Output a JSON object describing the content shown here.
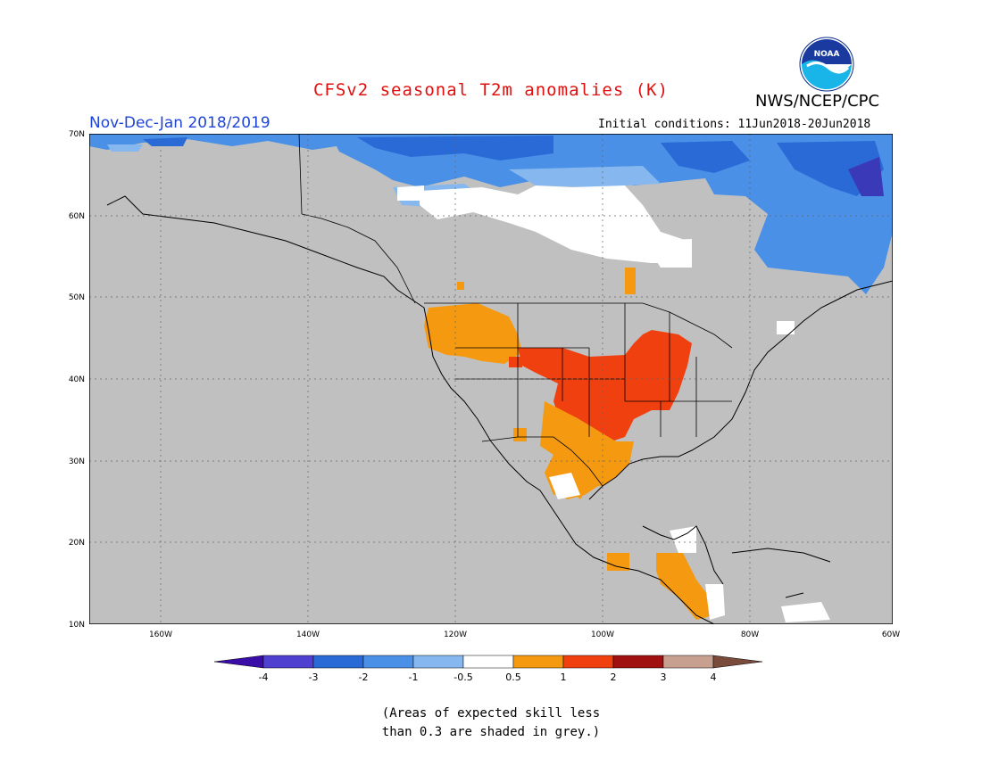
{
  "header": {
    "title": "CFSv2 seasonal T2m anomalies (K)",
    "agency": "NWS/NCEP/CPC",
    "period": "Nov-Dec-Jan 2018/2019",
    "initial_conditions": "Initial conditions: 11Jun2018-20Jun2018",
    "logo_text": "NOAA"
  },
  "map": {
    "lat_labels": [
      "70N",
      "60N",
      "50N",
      "40N",
      "30N",
      "20N",
      "10N"
    ],
    "lon_labels": [
      "160W",
      "140W",
      "120W",
      "100W",
      "80W",
      "60W"
    ],
    "ocean_land_fill": "#c0c0c0",
    "anomaly_regions": [
      {
        "region": "northern Canada / Arctic",
        "category": "-2 to -1"
      },
      {
        "region": "northern Canada interior",
        "category": "-0.5 to 0.5"
      },
      {
        "region": "Labrador / Quebec",
        "category": "-2 to -1"
      },
      {
        "region": "Pacific Northwest / Great Basin",
        "category": "0.5 to 1"
      },
      {
        "region": "Central Plains / Midwest",
        "category": "1 to 2"
      },
      {
        "region": "Southern Plains / Texas",
        "category": "0.5 to 1"
      },
      {
        "region": "Central America",
        "category": "0.5 to 1"
      }
    ]
  },
  "colorbar": {
    "labels": [
      "-4",
      "-3",
      "-2",
      "-1",
      "-0.5",
      "0.5",
      "1",
      "2",
      "3",
      "4"
    ],
    "colors": [
      "#3a0ca8",
      "#5040d0",
      "#2a6ad6",
      "#4a90e6",
      "#86b8ef",
      "#ffffff",
      "#f59a10",
      "#f04010",
      "#a01010",
      "#c8a090",
      "#7a4a3a"
    ]
  },
  "footnote": {
    "line1": "(Areas of expected skill less",
    "line2": "than 0.3 are shaded in grey.)"
  }
}
